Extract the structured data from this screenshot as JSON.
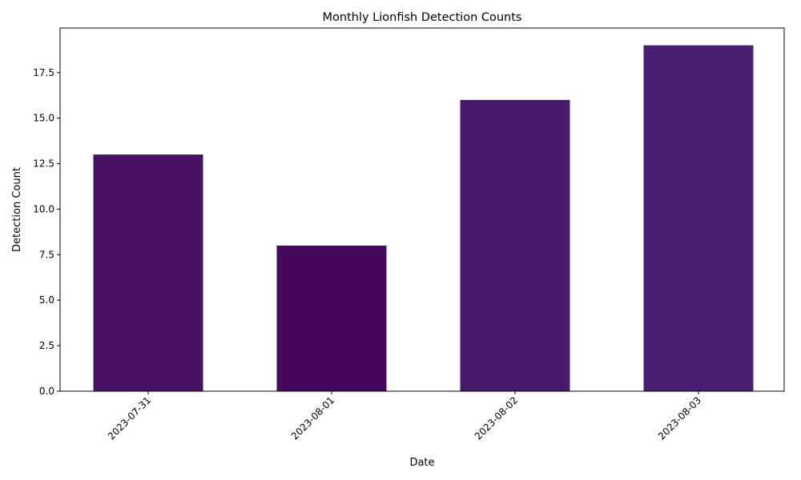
{
  "chart_data": {
    "type": "bar",
    "title": "Monthly Lionfish Detection Counts",
    "xlabel": "Date",
    "ylabel": "Detection Count",
    "categories": [
      "2023-07-31",
      "2023-08-01",
      "2023-08-02",
      "2023-08-03"
    ],
    "values": [
      13,
      8,
      16,
      19
    ],
    "bar_colors": [
      "#471063",
      "#450a5e",
      "#481a6c",
      "#481f70"
    ],
    "ylim": [
      0,
      19.95
    ],
    "yticks": [
      0.0,
      2.5,
      5.0,
      7.5,
      10.0,
      12.5,
      15.0,
      17.5
    ],
    "ytick_labels": [
      "0.0",
      "2.5",
      "5.0",
      "7.5",
      "10.0",
      "12.5",
      "15.0",
      "17.5"
    ],
    "grid": false,
    "legend": "none"
  }
}
